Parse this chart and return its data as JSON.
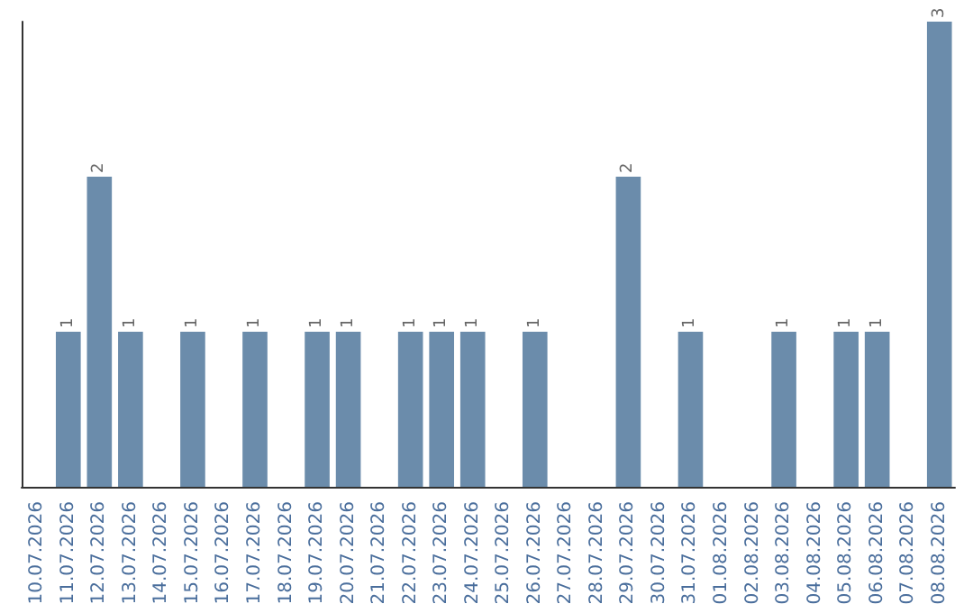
{
  "chart_data": {
    "type": "bar",
    "categories": [
      "10.07.2026",
      "11.07.2026",
      "12.07.2026",
      "13.07.2026",
      "14.07.2026",
      "15.07.2026",
      "16.07.2026",
      "17.07.2026",
      "18.07.2026",
      "19.07.2026",
      "20.07.2026",
      "21.07.2026",
      "22.07.2026",
      "23.07.2026",
      "24.07.2026",
      "25.07.2026",
      "26.07.2026",
      "27.07.2026",
      "28.07.2026",
      "29.07.2026",
      "30.07.2026",
      "31.07.2026",
      "01.08.2026",
      "02.08.2026",
      "03.08.2026",
      "04.08.2026",
      "05.08.2026",
      "06.08.2026",
      "07.08.2026",
      "08.08.2026"
    ],
    "values": [
      0,
      1,
      2,
      1,
      0,
      1,
      0,
      1,
      0,
      1,
      1,
      0,
      1,
      1,
      1,
      0,
      1,
      0,
      0,
      2,
      0,
      1,
      0,
      0,
      1,
      0,
      1,
      1,
      0,
      3
    ],
    "value_labels": [
      null,
      "1",
      "2",
      "1",
      null,
      "1",
      null,
      "1",
      null,
      "1",
      "1",
      null,
      "1",
      "1",
      "1",
      null,
      "1",
      null,
      null,
      "2",
      null,
      "1",
      null,
      null,
      "1",
      null,
      "1",
      "1",
      null,
      "3"
    ],
    "color": "#6b8cab",
    "ylim": [
      0,
      3
    ],
    "tick_labels": "x"
  }
}
